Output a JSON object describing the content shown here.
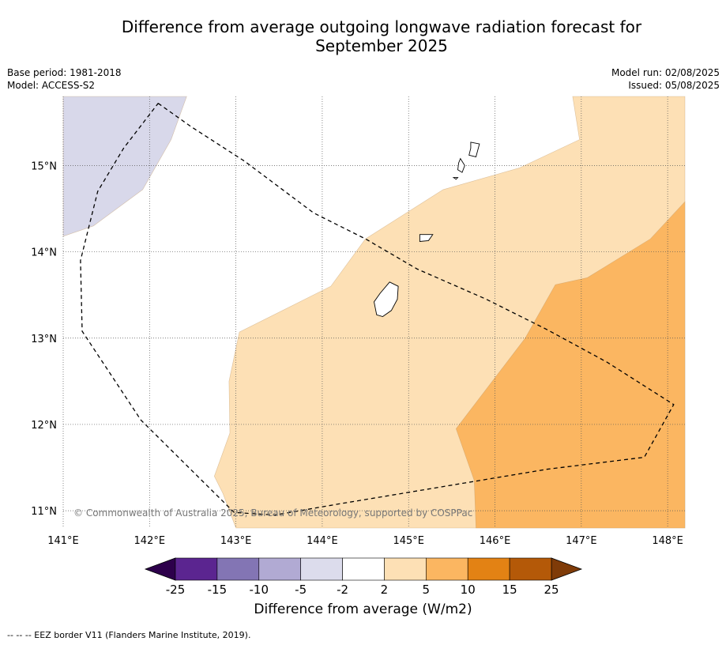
{
  "title": "Difference from average outgoing longwave radiation forecast for September 2025",
  "base_period": "Base period: 1981-2018",
  "model": "Model: ACCESS-S2",
  "model_run": "Model run: 02/08/2025",
  "issued": "Issued: 05/08/2025",
  "copyright": "© Commonwealth of Australia 2025, Bureau of Meteorology, supported by COSPPac",
  "footer": "--  --  -- EEZ border V11 (Flanders Marine Institute, 2019).",
  "map": {
    "lon_range": [
      141,
      148.2
    ],
    "lat_range": [
      10.8,
      15.8
    ],
    "lon_ticks": [
      {
        "v": 141,
        "label": "141°E"
      },
      {
        "v": 142,
        "label": "142°E"
      },
      {
        "v": 143,
        "label": "143°E"
      },
      {
        "v": 144,
        "label": "144°E"
      },
      {
        "v": 145,
        "label": "145°E"
      },
      {
        "v": 146,
        "label": "146°E"
      },
      {
        "v": 147,
        "label": "147°E"
      },
      {
        "v": 148,
        "label": "148°E"
      }
    ],
    "lat_ticks": [
      {
        "v": 11,
        "label": "11°N"
      },
      {
        "v": 12,
        "label": "12°N"
      },
      {
        "v": 13,
        "label": "13°N"
      },
      {
        "v": 14,
        "label": "14°N"
      },
      {
        "v": 15,
        "label": "15°N"
      }
    ],
    "grid": true,
    "regions": [
      {
        "level": "-5 to -2",
        "color": "#d8d8ea",
        "coords": [
          [
            141.0,
            15.8
          ],
          [
            142.43,
            15.8
          ],
          [
            142.25,
            15.3
          ],
          [
            141.92,
            14.72
          ],
          [
            141.35,
            14.3
          ],
          [
            141.0,
            14.18
          ]
        ]
      },
      {
        "level": "2 to 5",
        "color": "#fde0b5",
        "coords": [
          [
            146.9,
            15.8
          ],
          [
            148.2,
            15.8
          ],
          [
            148.2,
            10.8
          ],
          [
            143.0,
            10.8
          ],
          [
            142.85,
            11.2
          ],
          [
            142.75,
            11.4
          ],
          [
            142.93,
            11.9
          ],
          [
            142.92,
            12.5
          ],
          [
            143.04,
            13.07
          ],
          [
            144.1,
            13.6
          ],
          [
            144.5,
            14.15
          ],
          [
            145.4,
            14.72
          ],
          [
            146.28,
            14.97
          ],
          [
            146.98,
            15.3
          ]
        ]
      },
      {
        "level": "5 to 10",
        "color": "#fbb661",
        "coords": [
          [
            148.2,
            14.58
          ],
          [
            147.8,
            14.15
          ],
          [
            147.07,
            13.7
          ],
          [
            146.7,
            13.62
          ],
          [
            146.35,
            13.0
          ],
          [
            145.55,
            11.95
          ],
          [
            145.76,
            11.35
          ],
          [
            145.78,
            10.8
          ],
          [
            148.2,
            10.8
          ]
        ]
      }
    ],
    "eez_border": [
      [
        142.1,
        15.72
      ],
      [
        142.48,
        15.45
      ],
      [
        143.1,
        15.05
      ],
      [
        143.9,
        14.45
      ],
      [
        144.5,
        14.15
      ],
      [
        145.1,
        13.8
      ],
      [
        145.9,
        13.45
      ],
      [
        146.6,
        13.1
      ],
      [
        147.3,
        12.72
      ],
      [
        148.07,
        12.23
      ],
      [
        147.73,
        11.62
      ],
      [
        146.6,
        11.48
      ],
      [
        145.4,
        11.28
      ],
      [
        144.2,
        11.08
      ],
      [
        143.45,
        10.95
      ],
      [
        142.98,
        10.98
      ],
      [
        141.9,
        12.05
      ],
      [
        141.22,
        13.08
      ],
      [
        141.2,
        13.9
      ],
      [
        141.4,
        14.7
      ],
      [
        141.7,
        15.2
      ],
      [
        142.1,
        15.72
      ]
    ],
    "islands": [
      {
        "name": "Guam",
        "coords": [
          [
            144.78,
            13.65
          ],
          [
            144.88,
            13.6
          ],
          [
            144.87,
            13.45
          ],
          [
            144.8,
            13.32
          ],
          [
            144.7,
            13.25
          ],
          [
            144.63,
            13.27
          ],
          [
            144.6,
            13.42
          ],
          [
            144.67,
            13.52
          ]
        ]
      },
      {
        "name": "Rota",
        "coords": [
          [
            145.13,
            14.2
          ],
          [
            145.28,
            14.2
          ],
          [
            145.23,
            14.13
          ],
          [
            145.13,
            14.12
          ]
        ]
      },
      {
        "name": "Tinian",
        "coords": [
          [
            145.6,
            15.08
          ],
          [
            145.65,
            15.0
          ],
          [
            145.62,
            14.92
          ],
          [
            145.57,
            14.95
          ],
          [
            145.58,
            15.03
          ]
        ]
      },
      {
        "name": "Saipan",
        "coords": [
          [
            145.72,
            15.27
          ],
          [
            145.82,
            15.25
          ],
          [
            145.78,
            15.1
          ],
          [
            145.7,
            15.12
          ],
          [
            145.72,
            15.2
          ]
        ]
      },
      {
        "name": "Aguijan",
        "coords": [
          [
            145.52,
            14.86
          ],
          [
            145.57,
            14.86
          ],
          [
            145.55,
            14.84
          ]
        ]
      }
    ]
  },
  "colorbar": {
    "label": "Difference from average (W/m2)",
    "tick_labels": [
      "-25",
      "-15",
      "-10",
      "-5",
      "-2",
      "2",
      "5",
      "10",
      "15",
      "25"
    ],
    "colors": [
      "#5b2590",
      "#8375b4",
      "#b1aad3",
      "#dcdcec",
      "#ffffff",
      "#fde0b5",
      "#fbb661",
      "#e38214",
      "#b45908"
    ],
    "extend_low_color": "#2d004b",
    "extend_high_color": "#7f3b08"
  }
}
